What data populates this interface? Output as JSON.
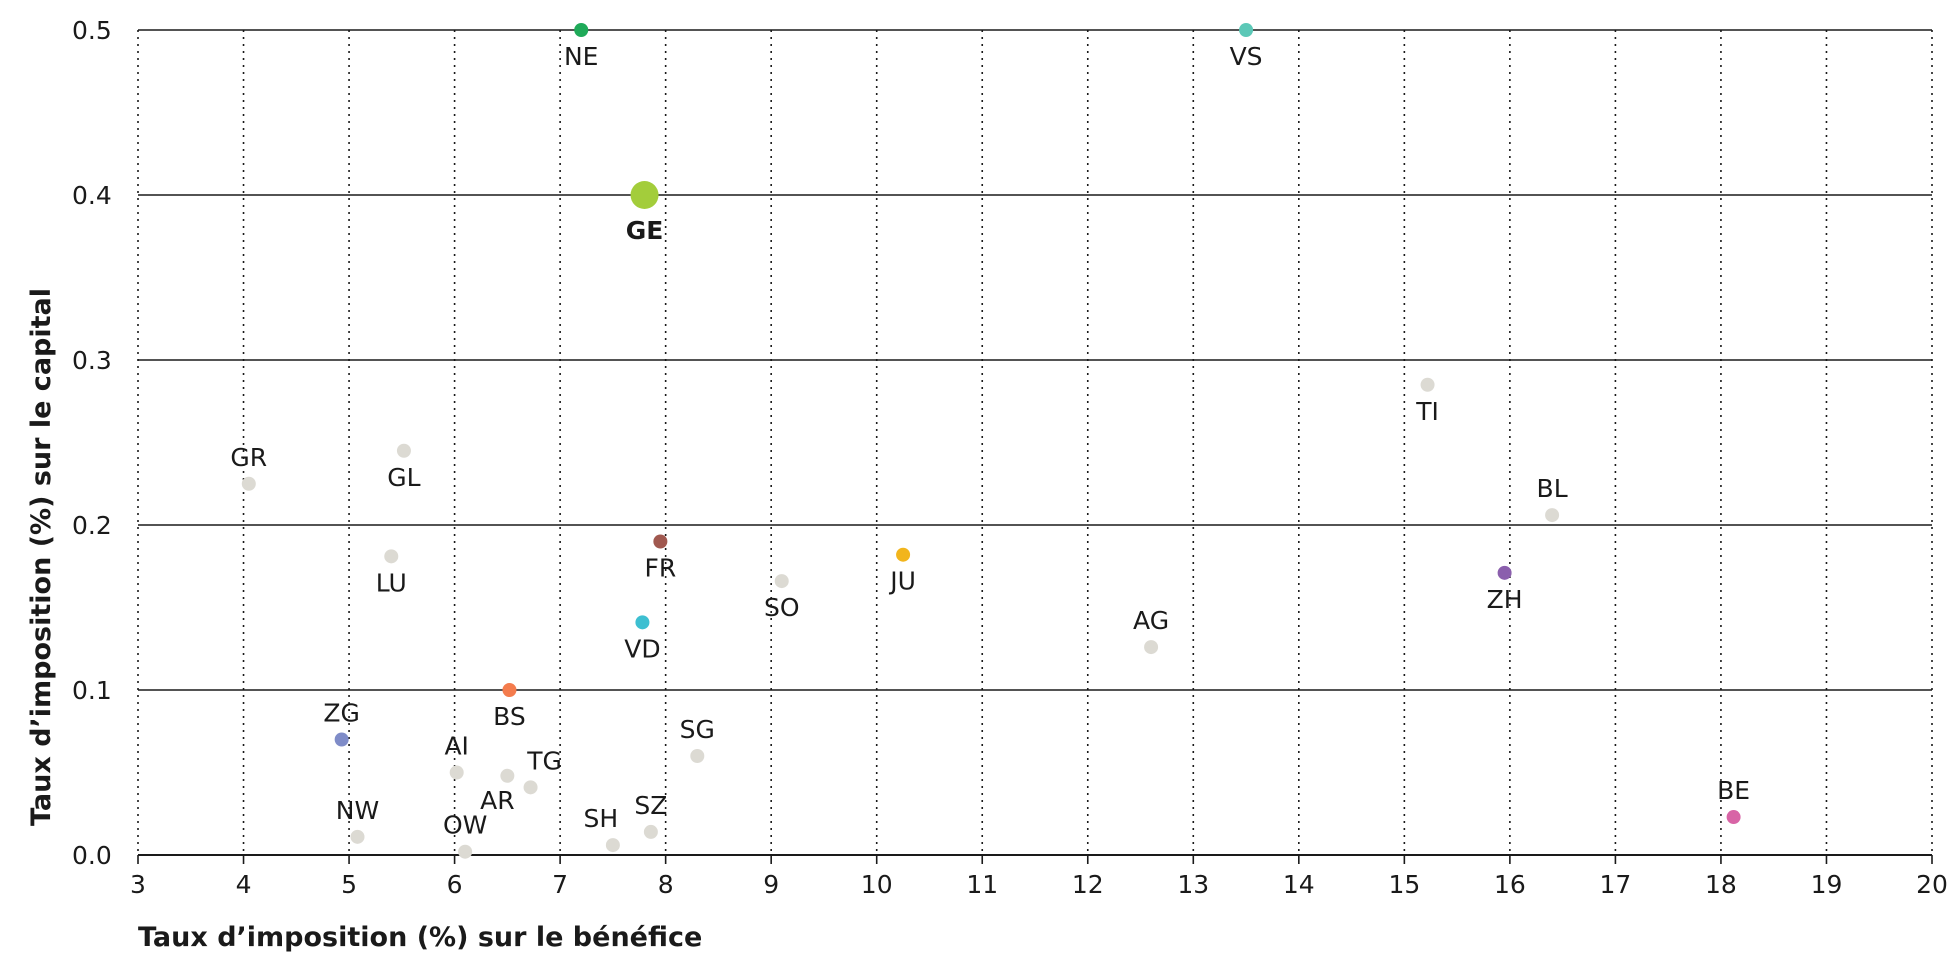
{
  "chart_data": {
    "type": "scatter",
    "xlabel": "Taux d’imposition (%) sur le bénéfice",
    "ylabel": "Taux d’imposition  (%) sur le capital",
    "xlim": [
      3,
      20
    ],
    "ylim": [
      0,
      0.5
    ],
    "x_ticks": [
      "3",
      "4",
      "5",
      "6",
      "7",
      "8",
      "9",
      "10",
      "11",
      "12",
      "13",
      "14",
      "15",
      "16",
      "17",
      "18",
      "19",
      "20"
    ],
    "y_ticks": [
      "0.0",
      "0.1",
      "0.2",
      "0.3",
      "0.4",
      "0.5"
    ],
    "grid": {
      "vertical": "dotted",
      "horizontal": "solid"
    },
    "default_color": "#dcdad3",
    "points": [
      {
        "label": "NE",
        "x": 7.2,
        "y": 0.5,
        "color": "#1faa59",
        "label_pos": "below"
      },
      {
        "label": "VS",
        "x": 13.5,
        "y": 0.5,
        "color": "#5cc8b7",
        "label_pos": "below"
      },
      {
        "label": "GE",
        "x": 7.8,
        "y": 0.4,
        "color": "#a3cd3b",
        "label_pos": "below",
        "highlight": true
      },
      {
        "label": "TI",
        "x": 15.22,
        "y": 0.285,
        "label_pos": "below"
      },
      {
        "label": "GR",
        "x": 4.05,
        "y": 0.225,
        "label_pos": "above"
      },
      {
        "label": "GL",
        "x": 5.52,
        "y": 0.245,
        "label_pos": "below"
      },
      {
        "label": "BL",
        "x": 16.4,
        "y": 0.206,
        "label_pos": "above"
      },
      {
        "label": "LU",
        "x": 5.4,
        "y": 0.181,
        "label_pos": "below"
      },
      {
        "label": "FR",
        "x": 7.95,
        "y": 0.19,
        "color": "#a0584f",
        "label_pos": "below"
      },
      {
        "label": "JU",
        "x": 10.25,
        "y": 0.182,
        "color": "#f2b51c",
        "label_pos": "below"
      },
      {
        "label": "SO",
        "x": 9.1,
        "y": 0.166,
        "label_pos": "below"
      },
      {
        "label": "ZH",
        "x": 15.95,
        "y": 0.171,
        "color": "#8b5fad",
        "label_pos": "below"
      },
      {
        "label": "VD",
        "x": 7.78,
        "y": 0.141,
        "color": "#3dbfd1",
        "label_pos": "below"
      },
      {
        "label": "AG",
        "x": 12.6,
        "y": 0.126,
        "label_pos": "above"
      },
      {
        "label": "BS",
        "x": 6.52,
        "y": 0.1,
        "color": "#f47c4d",
        "label_pos": "below"
      },
      {
        "label": "ZG",
        "x": 4.93,
        "y": 0.07,
        "color": "#7f8cc8",
        "label_pos": "above"
      },
      {
        "label": "SG",
        "x": 8.3,
        "y": 0.06,
        "label_pos": "above"
      },
      {
        "label": "AI",
        "x": 6.02,
        "y": 0.05,
        "label_pos": "above"
      },
      {
        "label": "AR",
        "x": 6.5,
        "y": 0.048,
        "label_pos": "belowleft"
      },
      {
        "label": "TG",
        "x": 6.72,
        "y": 0.041,
        "label_pos": "aboveright"
      },
      {
        "label": "BE",
        "x": 18.12,
        "y": 0.023,
        "color": "#d864a6",
        "label_pos": "above"
      },
      {
        "label": "SZ",
        "x": 7.86,
        "y": 0.014,
        "label_pos": "above"
      },
      {
        "label": "NW",
        "x": 5.08,
        "y": 0.011,
        "label_pos": "above"
      },
      {
        "label": "SH",
        "x": 7.5,
        "y": 0.006,
        "label_pos": "aboveleft"
      },
      {
        "label": "OW",
        "x": 6.1,
        "y": 0.002,
        "label_pos": "above"
      }
    ]
  }
}
